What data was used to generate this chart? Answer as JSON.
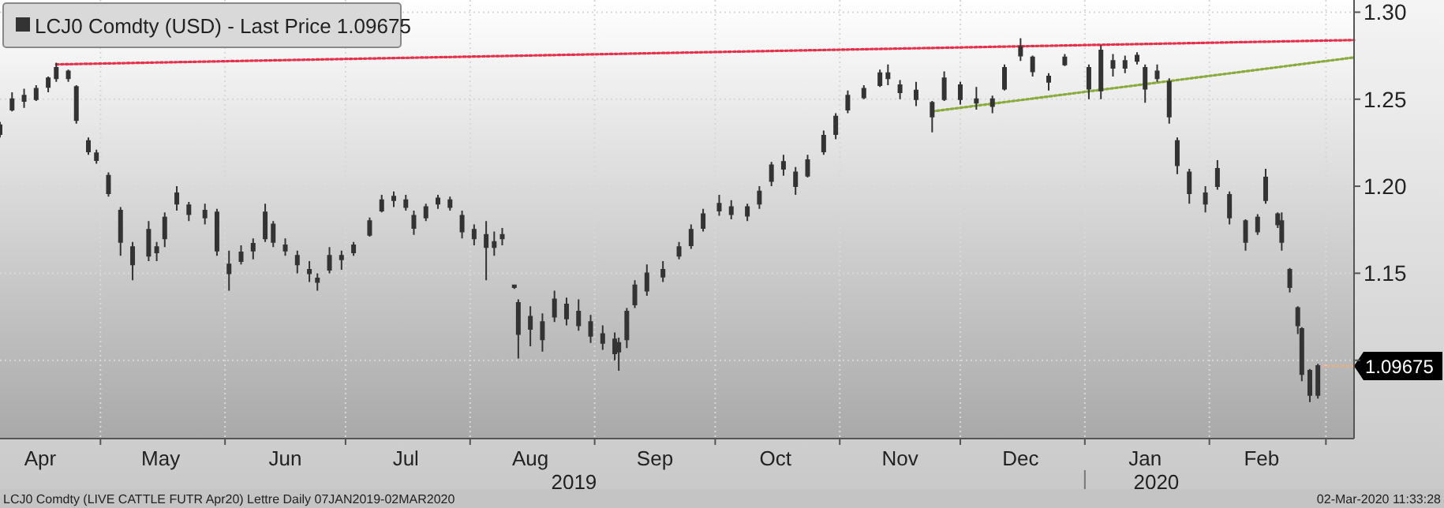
{
  "chart_data": {
    "type": "candlestick",
    "legend": "top left",
    "grid": true,
    "xlim": [
      "2019-04-06",
      "2020-03-08"
    ],
    "xticks": [
      {
        "value": "2019-05-01",
        "label": null
      },
      {
        "value": "2019-06-01",
        "label": null
      },
      {
        "value": "2019-07-01",
        "label": null
      },
      {
        "value": "2019-08-01",
        "label": null
      },
      {
        "value": "2019-09-01",
        "label": null
      },
      {
        "value": "2019-10-01",
        "label": null
      },
      {
        "value": "2019-11-01",
        "label": null
      },
      {
        "value": "2019-12-01",
        "label": null
      },
      {
        "value": "2020-01-01",
        "label": null
      },
      {
        "value": "2020-02-01",
        "label": null
      },
      {
        "value": "2020-03-01",
        "label": null
      },
      {
        "value": "2019-04-16",
        "label": "Apr"
      },
      {
        "value": "2019-05-16",
        "label": "May"
      },
      {
        "value": "2019-06-16",
        "label": "Jun"
      },
      {
        "value": "2019-07-16",
        "label": "Jul"
      },
      {
        "value": "2019-08-16",
        "label": "Aug"
      },
      {
        "value": "2019-09-16",
        "label": "Sep"
      },
      {
        "value": "2019-10-16",
        "label": "Oct"
      },
      {
        "value": "2019-11-16",
        "label": "Nov"
      },
      {
        "value": "2019-12-16",
        "label": "Dec"
      },
      {
        "value": "2020-01-16",
        "label": "Jan"
      },
      {
        "value": "2020-02-14",
        "label": "Feb"
      }
    ],
    "ylim": [
      1.055,
      1.307
    ],
    "yticks": [
      {
        "value": 1.1,
        "label": null
      },
      1.15,
      {
        "value": 1.2,
        "label": "1.20"
      },
      1.25,
      {
        "value": 1.3,
        "label": "1.30"
      }
    ],
    "ref_lines": [
      {
        "axis": "y",
        "value": 1.09675,
        "label": "1.09675",
        "color": "#f0b070",
        "line_style": "dotted"
      }
    ],
    "annotations": [
      "2019",
      "2020",
      "LCJ0 Comdty (LIVE CATTLE FUTR  Apr20) Lettre  Daily 07JAN2019-02MAR2020",
      "02-Mar-2020 11:33:28"
    ],
    "series": [
      {
        "name": "LCJ0 Comdty (USD) - Last Price 1.09675",
        "color": "#333333",
        "x": [
          "2019-04-06",
          "2019-04-09",
          "2019-04-12",
          "2019-04-15",
          "2019-04-18",
          "2019-04-20",
          "2019-04-23",
          "2019-04-25",
          "2019-04-28",
          "2019-04-30",
          "2019-05-03",
          "2019-05-06",
          "2019-05-09",
          "2019-05-13",
          "2019-05-15",
          "2019-05-17",
          "2019-05-20",
          "2019-05-23",
          "2019-05-27",
          "2019-05-30",
          "2019-06-02",
          "2019-06-05",
          "2019-06-08",
          "2019-06-11",
          "2019-06-13",
          "2019-06-16",
          "2019-06-19",
          "2019-06-22",
          "2019-06-24",
          "2019-06-27",
          "2019-06-30",
          "2019-07-03",
          "2019-07-07",
          "2019-07-10",
          "2019-07-13",
          "2019-07-16",
          "2019-07-18",
          "2019-07-21",
          "2019-07-24",
          "2019-07-27",
          "2019-07-30",
          "2019-08-02",
          "2019-08-05",
          "2019-08-07",
          "2019-08-09",
          "2019-08-12",
          "2019-08-13",
          "2019-08-16",
          "2019-08-19",
          "2019-08-22",
          "2019-08-25",
          "2019-08-28",
          "2019-08-31",
          "2019-09-03",
          "2019-09-06",
          "2019-09-07",
          "2019-09-09",
          "2019-09-11",
          "2019-09-14",
          "2019-09-18",
          "2019-09-22",
          "2019-09-25",
          "2019-09-28",
          "2019-10-02",
          "2019-10-05",
          "2019-10-09",
          "2019-10-12",
          "2019-10-15",
          "2019-10-18",
          "2019-10-21",
          "2019-10-24",
          "2019-10-28",
          "2019-10-31",
          "2019-11-03",
          "2019-11-07",
          "2019-11-11",
          "2019-11-13",
          "2019-11-16",
          "2019-11-20",
          "2019-11-24",
          "2019-11-27",
          "2019-12-01",
          "2019-12-05",
          "2019-12-09",
          "2019-12-12",
          "2019-12-16",
          "2019-12-19",
          "2019-12-23",
          "2019-12-27",
          "2020-01-02",
          "2020-01-05",
          "2020-01-08",
          "2020-01-11",
          "2020-01-14",
          "2020-01-16",
          "2020-01-19",
          "2020-01-22",
          "2020-01-24",
          "2020-01-27",
          "2020-01-31",
          "2020-02-03",
          "2020-02-06",
          "2020-02-10",
          "2020-02-13",
          "2020-02-15",
          "2020-02-18",
          "2020-02-19",
          "2020-02-21",
          "2020-02-23",
          "2020-02-24",
          "2020-02-26",
          "2020-02-28"
        ],
        "ohlc": [
          [
            1.23,
            1.237,
            1.228,
            1.235
          ],
          [
            1.244,
            1.254,
            1.243,
            1.25
          ],
          [
            1.249,
            1.256,
            1.245,
            1.252
          ],
          [
            1.25,
            1.258,
            1.249,
            1.256
          ],
          [
            1.257,
            1.263,
            1.254,
            1.262
          ],
          [
            1.262,
            1.271,
            1.26,
            1.268
          ],
          [
            1.266,
            1.267,
            1.26,
            1.262
          ],
          [
            1.257,
            1.258,
            1.236,
            1.238
          ],
          [
            1.226,
            1.228,
            1.218,
            1.22
          ],
          [
            1.219,
            1.221,
            1.213,
            1.215
          ],
          [
            1.206,
            1.208,
            1.194,
            1.196
          ],
          [
            1.186,
            1.188,
            1.16,
            1.168
          ],
          [
            1.165,
            1.168,
            1.146,
            1.155
          ],
          [
            1.16,
            1.18,
            1.157,
            1.175
          ],
          [
            1.165,
            1.168,
            1.157,
            1.162
          ],
          [
            1.17,
            1.185,
            1.165,
            1.182
          ],
          [
            1.19,
            1.2,
            1.186,
            1.196
          ],
          [
            1.189,
            1.191,
            1.18,
            1.184
          ],
          [
            1.186,
            1.19,
            1.178,
            1.182
          ],
          [
            1.185,
            1.187,
            1.16,
            1.163
          ],
          [
            1.155,
            1.163,
            1.14,
            1.15
          ],
          [
            1.157,
            1.166,
            1.155,
            1.162
          ],
          [
            1.163,
            1.17,
            1.158,
            1.167
          ],
          [
            1.17,
            1.19,
            1.168,
            1.185
          ],
          [
            1.178,
            1.18,
            1.165,
            1.168
          ],
          [
            1.166,
            1.17,
            1.16,
            1.163
          ],
          [
            1.16,
            1.163,
            1.15,
            1.155
          ],
          [
            1.152,
            1.157,
            1.145,
            1.15
          ],
          [
            1.147,
            1.15,
            1.14,
            1.145
          ],
          [
            1.152,
            1.165,
            1.15,
            1.16
          ],
          [
            1.158,
            1.163,
            1.152,
            1.16
          ],
          [
            1.162,
            1.168,
            1.16,
            1.166
          ],
          [
            1.172,
            1.182,
            1.171,
            1.18
          ],
          [
            1.186,
            1.195,
            1.185,
            1.192
          ],
          [
            1.192,
            1.197,
            1.188,
            1.194
          ],
          [
            1.192,
            1.195,
            1.186,
            1.188
          ],
          [
            1.183,
            1.186,
            1.172,
            1.176
          ],
          [
            1.182,
            1.19,
            1.18,
            1.188
          ],
          [
            1.19,
            1.195,
            1.187,
            1.193
          ],
          [
            1.192,
            1.194,
            1.186,
            1.188
          ],
          [
            1.183,
            1.186,
            1.17,
            1.174
          ],
          [
            1.175,
            1.178,
            1.166,
            1.17
          ],
          [
            1.172,
            1.18,
            1.146,
            1.165
          ],
          [
            1.165,
            1.174,
            1.16,
            1.168
          ],
          [
            1.17,
            1.176,
            1.166,
            1.172
          ],
          [
            1.143,
            1.143,
            1.141,
            1.142
          ],
          [
            1.133,
            1.135,
            1.101,
            1.115
          ],
          [
            1.118,
            1.131,
            1.108,
            1.125
          ],
          [
            1.122,
            1.127,
            1.105,
            1.112
          ],
          [
            1.125,
            1.14,
            1.122,
            1.135
          ],
          [
            1.132,
            1.136,
            1.12,
            1.124
          ],
          [
            1.128,
            1.135,
            1.117,
            1.12
          ],
          [
            1.122,
            1.126,
            1.11,
            1.114
          ],
          [
            1.115,
            1.12,
            1.106,
            1.11
          ],
          [
            1.112,
            1.116,
            1.1,
            1.104
          ],
          [
            1.105,
            1.113,
            1.094,
            1.11
          ],
          [
            1.112,
            1.13,
            1.107,
            1.128
          ],
          [
            1.132,
            1.146,
            1.13,
            1.143
          ],
          [
            1.14,
            1.155,
            1.137,
            1.15
          ],
          [
            1.148,
            1.157,
            1.145,
            1.152
          ],
          [
            1.16,
            1.168,
            1.158,
            1.165
          ],
          [
            1.166,
            1.178,
            1.164,
            1.175
          ],
          [
            1.176,
            1.187,
            1.174,
            1.184
          ],
          [
            1.186,
            1.195,
            1.183,
            1.19
          ],
          [
            1.188,
            1.192,
            1.181,
            1.184
          ],
          [
            1.183,
            1.19,
            1.18,
            1.188
          ],
          [
            1.19,
            1.2,
            1.187,
            1.197
          ],
          [
            1.203,
            1.214,
            1.2,
            1.212
          ],
          [
            1.21,
            1.218,
            1.206,
            1.214
          ],
          [
            1.208,
            1.211,
            1.195,
            1.2
          ],
          [
            1.206,
            1.218,
            1.205,
            1.215
          ],
          [
            1.22,
            1.232,
            1.218,
            1.229
          ],
          [
            1.23,
            1.242,
            1.227,
            1.24
          ],
          [
            1.244,
            1.255,
            1.242,
            1.252
          ],
          [
            1.251,
            1.258,
            1.25,
            1.256
          ],
          [
            1.258,
            1.267,
            1.257,
            1.265
          ],
          [
            1.265,
            1.27,
            1.258,
            1.262
          ],
          [
            1.258,
            1.261,
            1.25,
            1.254
          ],
          [
            1.255,
            1.26,
            1.246,
            1.25
          ],
          [
            1.248,
            1.249,
            1.231,
            1.24
          ],
          [
            1.25,
            1.266,
            1.249,
            1.262
          ],
          [
            1.258,
            1.26,
            1.247,
            1.25
          ],
          [
            1.25,
            1.257,
            1.244,
            1.248
          ],
          [
            1.246,
            1.252,
            1.242,
            1.25
          ],
          [
            1.256,
            1.27,
            1.255,
            1.268
          ],
          [
            1.275,
            1.285,
            1.272,
            1.28
          ],
          [
            1.274,
            1.275,
            1.263,
            1.266
          ],
          [
            1.263,
            1.265,
            1.255,
            1.26
          ],
          [
            1.27,
            1.276,
            1.269,
            1.274
          ],
          [
            1.268,
            1.27,
            1.25,
            1.256
          ],
          [
            1.255,
            1.281,
            1.25,
            1.278
          ],
          [
            1.272,
            1.276,
            1.263,
            1.268
          ],
          [
            1.268,
            1.275,
            1.265,
            1.272
          ],
          [
            1.272,
            1.277,
            1.27,
            1.275
          ],
          [
            1.268,
            1.27,
            1.248,
            1.256
          ],
          [
            1.262,
            1.27,
            1.26,
            1.266
          ],
          [
            1.26,
            1.262,
            1.236,
            1.24
          ],
          [
            1.226,
            1.228,
            1.207,
            1.212
          ],
          [
            1.208,
            1.21,
            1.19,
            1.196
          ],
          [
            1.196,
            1.2,
            1.185,
            1.19
          ],
          [
            1.2,
            1.215,
            1.198,
            1.21
          ],
          [
            1.195,
            1.197,
            1.178,
            1.182
          ],
          [
            1.18,
            1.181,
            1.163,
            1.168
          ],
          [
            1.174,
            1.184,
            1.172,
            1.182
          ],
          [
            1.192,
            1.21,
            1.19,
            1.205
          ],
          [
            1.184,
            1.185,
            1.176,
            1.178
          ],
          [
            1.18,
            1.185,
            1.163,
            1.168
          ],
          [
            1.152,
            1.153,
            1.139,
            1.142
          ],
          [
            1.13,
            1.131,
            1.115,
            1.12
          ],
          [
            1.118,
            1.119,
            1.088,
            1.092
          ],
          [
            1.094,
            1.095,
            1.076,
            1.08
          ],
          [
            1.08,
            1.098,
            1.078,
            1.09675
          ]
        ]
      },
      {
        "type": "line",
        "color": "#e8304a",
        "line_style": "dotted",
        "marker": "none",
        "x": [
          "2019-04-20",
          "2020-03-08"
        ],
        "values": [
          1.27,
          1.284
        ]
      },
      {
        "type": "line",
        "color": "#8aab3c",
        "line_style": "dotted",
        "marker": "none",
        "x": [
          "2019-11-24",
          "2020-03-08"
        ],
        "values": [
          1.243,
          1.274
        ]
      }
    ]
  }
}
